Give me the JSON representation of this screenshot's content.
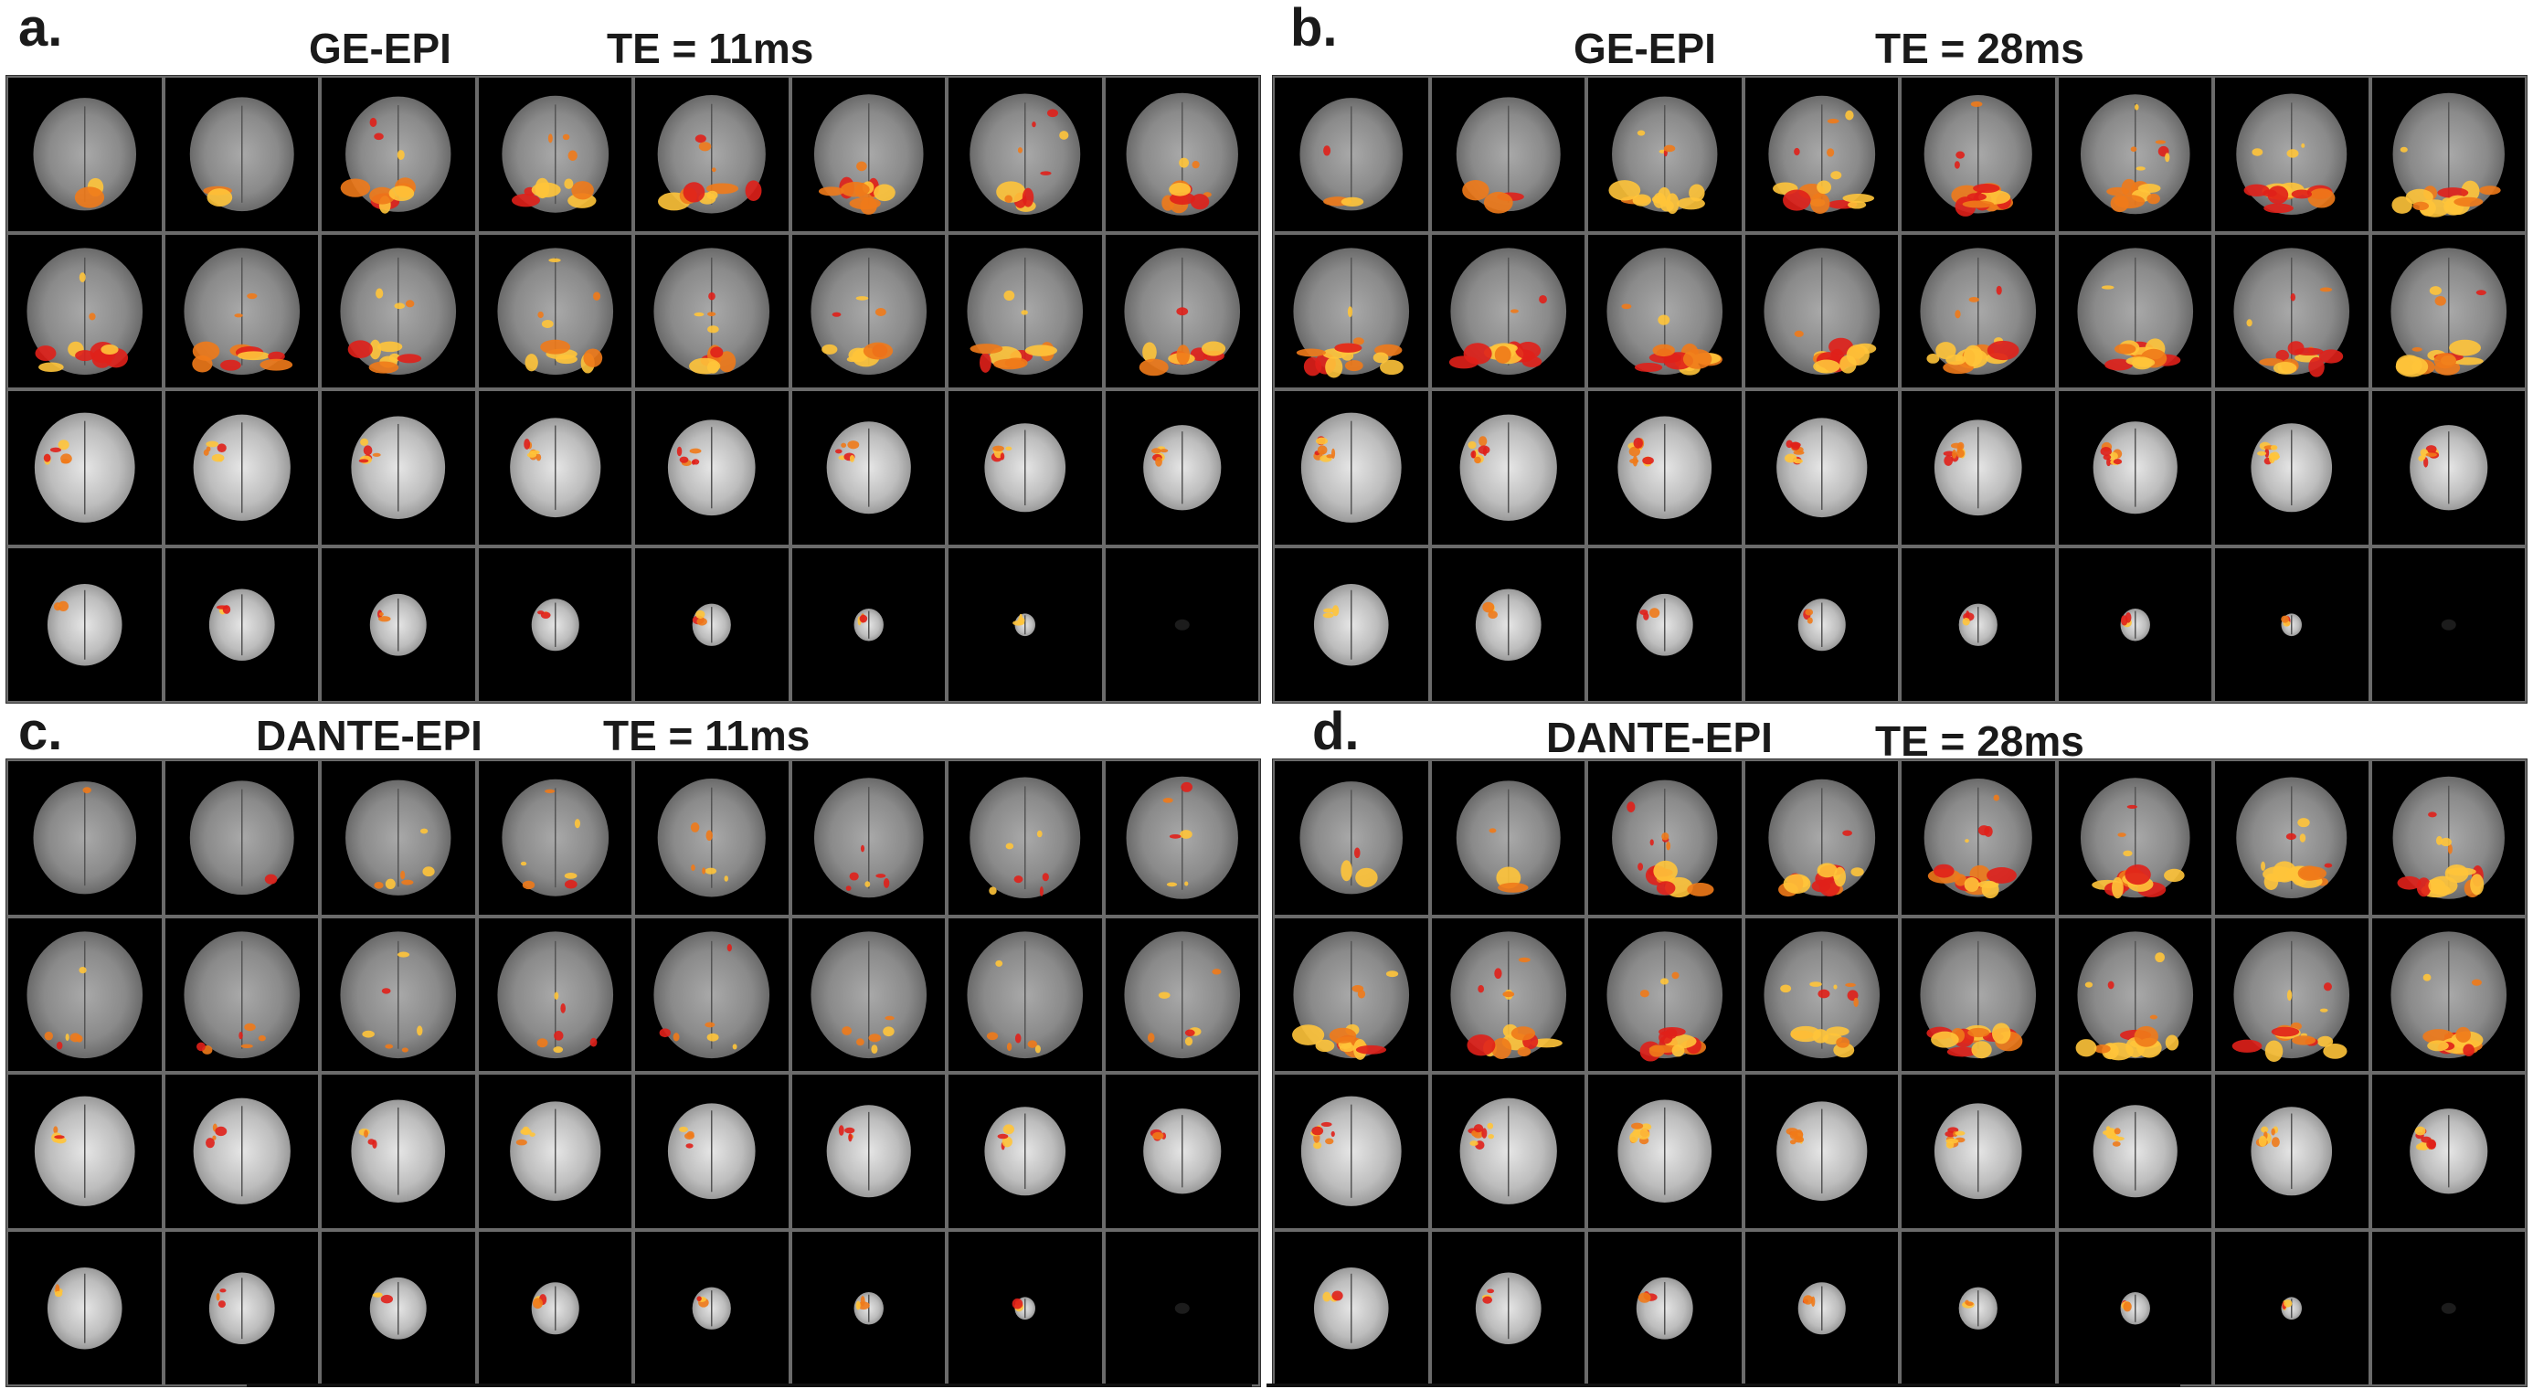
{
  "figure": {
    "panels": [
      {
        "id": "a",
        "letter": "a.",
        "sequence": "GE-EPI",
        "te": "TE = 11ms",
        "activation": "te11"
      },
      {
        "id": "b",
        "letter": "b.",
        "sequence": "GE-EPI",
        "te": "TE = 28ms",
        "activation": "te28"
      },
      {
        "id": "c",
        "letter": "c.",
        "sequence": "DANTE-EPI",
        "te": "TE = 11ms",
        "activation": "te11_dante"
      },
      {
        "id": "d",
        "letter": "d.",
        "sequence": "DANTE-EPI",
        "te": "TE = 28ms",
        "activation": "te28"
      }
    ],
    "grid": {
      "rows": 4,
      "cols": 8
    },
    "colors": {
      "background": "#000000",
      "divider": "#6b6b6b",
      "activation_low": "#e0201a",
      "activation_high": "#ffc43a",
      "brain_gray": "#8a8a8a"
    }
  }
}
